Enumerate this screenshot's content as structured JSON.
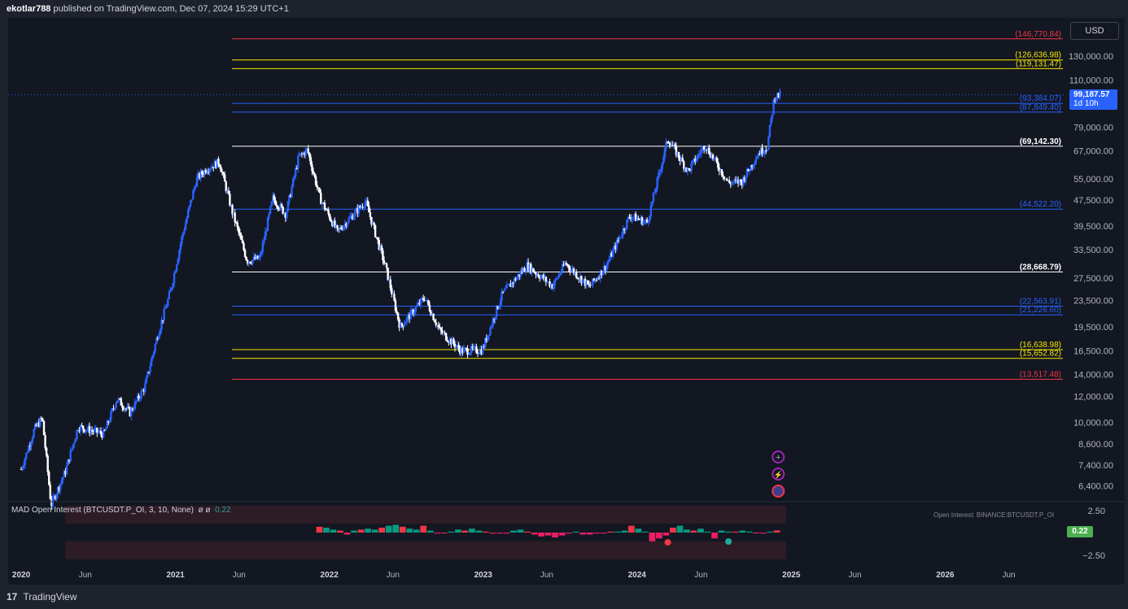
{
  "header": {
    "author": "ekotlar788",
    "published": "published on TradingView.com, Dec 07, 2024 15:29 UTC+1"
  },
  "currency": "USD",
  "current_price": {
    "price": "99,187.57",
    "countdown": "1d 10h"
  },
  "colors": {
    "background": "#131722",
    "candle": "#2962ff",
    "red_level": "#f23645",
    "yellow_level": "#f7e600",
    "blue_level": "#2962ff",
    "white_level": "#ffffff",
    "hist_pos": "#089981",
    "hist_neg": "#f23645",
    "hist_neg2": "#e91e63"
  },
  "indicator": {
    "legend": "MAD Open Interest (BTCUSDT.P_OI, 3, 10, None)",
    "glyphs": "ø ø",
    "value": "0.22",
    "source_note": "Open Interest: BINANCE:BTCUSDT.P_OI",
    "axis_labels": [
      "2.50",
      "−2.50"
    ]
  },
  "footer": {
    "brand": "TradingView",
    "logo_icon": "tradingview-logo-icon"
  },
  "event_icons": [
    "purple-plus-icon",
    "lightning-icon",
    "us-flag-icon"
  ],
  "chart_data": {
    "type": "candlestick",
    "y_scale": "log",
    "y_range": [
      5800,
      170000
    ],
    "x_range": [
      "2019-12-01",
      "2026-10-15"
    ],
    "y_tick_labels": [
      "130,000.00",
      "110,000.00",
      "79,000.00",
      "67,000.00",
      "55,000.00",
      "47,500.00",
      "39,500.00",
      "33,500.00",
      "27,500.00",
      "23,500.00",
      "19,500.00",
      "16,500.00",
      "14,000.00",
      "12,000.00",
      "10,000.00",
      "8,600.00",
      "7,400.00",
      "6,400.00"
    ],
    "y_tick_values": [
      130000,
      110000,
      79000,
      67000,
      55000,
      47500,
      39500,
      33500,
      27500,
      23500,
      19500,
      16500,
      14000,
      12000,
      10000,
      8600,
      7400,
      6400
    ],
    "x_tick_labels": [
      "2020",
      "Jun",
      "2021",
      "Jun",
      "2022",
      "Jun",
      "2023",
      "Jun",
      "2024",
      "Jun",
      "2025",
      "Jun",
      "2026",
      "Jun"
    ],
    "x_tick_dates": [
      "2020-01-01",
      "2020-06-01",
      "2021-01-01",
      "2021-06-01",
      "2022-01-01",
      "2022-06-01",
      "2023-01-01",
      "2023-06-01",
      "2024-01-01",
      "2024-06-01",
      "2025-01-01",
      "2025-06-01",
      "2026-01-01",
      "2026-06-01"
    ],
    "levels": [
      {
        "label": "(146,770.84)",
        "value": 146770.84,
        "color": "red"
      },
      {
        "label": "(126,636.98)",
        "value": 126636.98,
        "color": "yellow"
      },
      {
        "label": "(119,131.47)",
        "value": 119131.47,
        "color": "yellow"
      },
      {
        "label": "(93,384.07)",
        "value": 93384.07,
        "color": "blue"
      },
      {
        "label": "(87,849.40)",
        "value": 87849.4,
        "color": "blue"
      },
      {
        "label": "(69,142.30)",
        "value": 69142.3,
        "color": "white"
      },
      {
        "label": "(44,522.20)",
        "value": 44522.2,
        "color": "blue"
      },
      {
        "label": "(28,668.79)",
        "value": 28668.79,
        "color": "white"
      },
      {
        "label": "(22,563.91)",
        "value": 22563.91,
        "color": "blue"
      },
      {
        "label": "(21,226.60)",
        "value": 21226.6,
        "color": "blue"
      },
      {
        "label": "(16,638.98)",
        "value": 16638.98,
        "color": "yellow"
      },
      {
        "label": "(15,652.82)",
        "value": 15652.82,
        "color": "yellow"
      },
      {
        "label": "(13,517.48)",
        "value": 13517.48,
        "color": "red"
      }
    ],
    "level_start_date": "2021-05-15",
    "series": [
      {
        "date": "2020-01-01",
        "close": 7200
      },
      {
        "date": "2020-02-01",
        "close": 9500
      },
      {
        "date": "2020-02-20",
        "close": 10300
      },
      {
        "date": "2020-03-12",
        "close": 5600
      },
      {
        "date": "2020-04-15",
        "close": 7100
      },
      {
        "date": "2020-05-15",
        "close": 9700
      },
      {
        "date": "2020-07-15",
        "close": 9200
      },
      {
        "date": "2020-08-15",
        "close": 11800
      },
      {
        "date": "2020-09-15",
        "close": 10700
      },
      {
        "date": "2020-10-20",
        "close": 12800
      },
      {
        "date": "2020-11-20",
        "close": 18500
      },
      {
        "date": "2020-12-20",
        "close": 25000
      },
      {
        "date": "2021-01-15",
        "close": 36000
      },
      {
        "date": "2021-02-20",
        "close": 55000
      },
      {
        "date": "2021-03-15",
        "close": 59000
      },
      {
        "date": "2021-04-15",
        "close": 62000
      },
      {
        "date": "2021-05-15",
        "close": 44000
      },
      {
        "date": "2021-06-20",
        "close": 31000
      },
      {
        "date": "2021-07-20",
        "close": 31500
      },
      {
        "date": "2021-08-20",
        "close": 48000
      },
      {
        "date": "2021-09-20",
        "close": 43000
      },
      {
        "date": "2021-10-20",
        "close": 64000
      },
      {
        "date": "2021-11-10",
        "close": 67500
      },
      {
        "date": "2021-12-10",
        "close": 48000
      },
      {
        "date": "2022-01-20",
        "close": 38000
      },
      {
        "date": "2022-03-28",
        "close": 47000
      },
      {
        "date": "2022-05-15",
        "close": 29500
      },
      {
        "date": "2022-06-18",
        "close": 19500
      },
      {
        "date": "2022-08-15",
        "close": 24000
      },
      {
        "date": "2022-09-20",
        "close": 19000
      },
      {
        "date": "2022-11-10",
        "close": 16500
      },
      {
        "date": "2022-12-30",
        "close": 16600
      },
      {
        "date": "2023-02-15",
        "close": 24500
      },
      {
        "date": "2023-04-15",
        "close": 30000
      },
      {
        "date": "2023-06-15",
        "close": 26000
      },
      {
        "date": "2023-07-15",
        "close": 30500
      },
      {
        "date": "2023-09-10",
        "close": 25800
      },
      {
        "date": "2023-10-20",
        "close": 30000
      },
      {
        "date": "2023-12-15",
        "close": 42500
      },
      {
        "date": "2024-01-25",
        "close": 40500
      },
      {
        "date": "2024-03-14",
        "close": 73000
      },
      {
        "date": "2024-05-01",
        "close": 58000
      },
      {
        "date": "2024-06-10",
        "close": 70000
      },
      {
        "date": "2024-08-05",
        "close": 53500
      },
      {
        "date": "2024-09-06",
        "close": 54000
      },
      {
        "date": "2024-10-15",
        "close": 66000
      },
      {
        "date": "2024-11-05",
        "close": 69000
      },
      {
        "date": "2024-11-22",
        "close": 98000
      },
      {
        "date": "2024-12-07",
        "close": 99187.57
      }
    ],
    "oi_histogram": {
      "start": "2021-12-01",
      "end": "2024-12-07",
      "values": [
        0.6,
        0.5,
        0.3,
        0.2,
        -0.2,
        0.2,
        0.3,
        0.4,
        0.3,
        0.5,
        0.7,
        0.8,
        0.6,
        0.4,
        0.3,
        0.7,
        0.2,
        -0.1,
        0,
        0.1,
        0.3,
        0.2,
        0.4,
        0.2,
        0.1,
        -0.1,
        -0.1,
        -0.1,
        0.2,
        0.3,
        0.1,
        -0.2,
        -0.4,
        -0.3,
        -0.5,
        -0.3,
        -0.1,
        0.1,
        -0.2,
        -0.2,
        -0.1,
        -0.1,
        0.1,
        0.1,
        0.2,
        0.7,
        0.4,
        0.1,
        -0.9,
        -0.6,
        -0.3,
        0.5,
        0.7,
        0.3,
        0.2,
        0.4,
        0.1,
        -0.6,
        0.2,
        0.1,
        0.1,
        0.2,
        0.1,
        0,
        -0.1,
        0.1,
        0.22
      ]
    }
  }
}
